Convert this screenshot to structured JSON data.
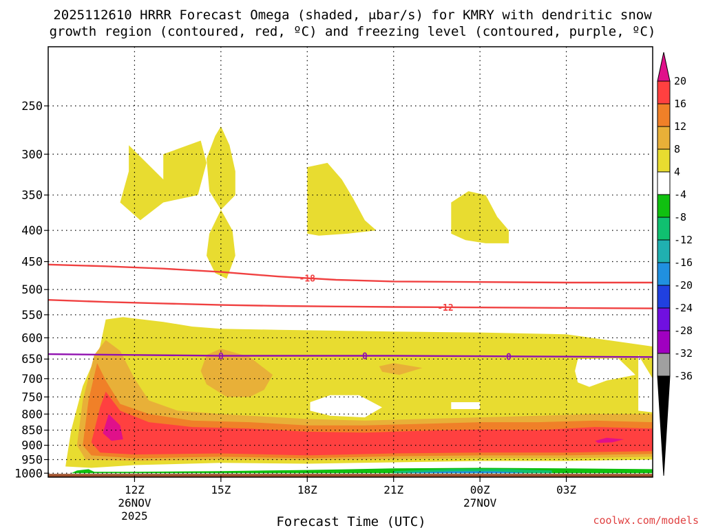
{
  "chart_data": {
    "type": "heatmap",
    "title_line1": "2025112610 HRRR Forecast Omega (shaded, μbar/s) for KMRY with dendritic snow",
    "title_line2": "growth region (contoured, red, ºC) and freezing level (contoured, purple, ºC)",
    "xlabel": "Forecast Time (UTC)",
    "watermark": "coolwx.com/models",
    "x_hours": [
      9,
      30
    ],
    "x_ticks": [
      {
        "hour": 12,
        "label": "12Z",
        "sub1": "26NOV",
        "sub2": "2025"
      },
      {
        "hour": 15,
        "label": "15Z",
        "sub1": "",
        "sub2": ""
      },
      {
        "hour": 18,
        "label": "18Z",
        "sub1": "",
        "sub2": ""
      },
      {
        "hour": 21,
        "label": "21Z",
        "sub1": "",
        "sub2": ""
      },
      {
        "hour": 24,
        "label": "00Z",
        "sub1": "27NOV",
        "sub2": ""
      },
      {
        "hour": 27,
        "label": "03Z",
        "sub1": "",
        "sub2": ""
      }
    ],
    "y_levels_hpa": [
      250,
      300,
      350,
      400,
      450,
      500,
      550,
      600,
      650,
      700,
      750,
      800,
      850,
      900,
      950,
      1000
    ],
    "y_range_hpa": [
      200,
      1015
    ],
    "colorbar": {
      "labels": [
        "20",
        "16",
        "12",
        "8",
        "4",
        "-4",
        "-8",
        "-12",
        "-16",
        "-20",
        "-24",
        "-28",
        "-32",
        "-36"
      ],
      "colors": [
        "#ff4040",
        "#f08028",
        "#e8b038",
        "#e8dc30",
        "#ffffff",
        "#10c010",
        "#10c070",
        "#20b0b0",
        "#2090e0",
        "#2040e0",
        "#7010e0",
        "#a000c0",
        "#a0a0a0"
      ],
      "top_arrow_color": "#e0108a",
      "bottom_arrow_color": "#000000"
    },
    "contours": [
      {
        "name": "dgz-minus18",
        "value": -18,
        "label": "-18",
        "color": "#f04040",
        "points": [
          [
            9,
            455
          ],
          [
            11,
            458
          ],
          [
            13,
            462
          ],
          [
            15,
            468
          ],
          [
            17,
            476
          ],
          [
            19,
            482
          ],
          [
            21,
            485
          ],
          [
            24,
            486
          ],
          [
            27,
            487
          ],
          [
            30,
            487
          ]
        ],
        "label_hour": 18
      },
      {
        "name": "dgz-minus12",
        "value": -12,
        "label": "-12",
        "color": "#f04040",
        "points": [
          [
            9,
            520
          ],
          [
            11,
            524
          ],
          [
            13,
            527
          ],
          [
            15,
            530
          ],
          [
            17,
            532
          ],
          [
            19,
            533
          ],
          [
            21,
            534
          ],
          [
            24,
            535
          ],
          [
            27,
            536
          ],
          [
            30,
            537
          ]
        ],
        "label_hour": 22.8
      },
      {
        "name": "freezing-level",
        "value": 0,
        "label": "0",
        "color": "#9010b0",
        "points": [
          [
            9,
            638
          ],
          [
            12,
            640
          ],
          [
            15,
            642
          ],
          [
            18,
            642
          ],
          [
            21,
            642
          ],
          [
            24,
            643
          ],
          [
            27,
            644
          ],
          [
            30,
            645
          ]
        ],
        "label_hours": [
          15,
          20,
          25
        ]
      }
    ],
    "omega_regions": [
      {
        "color": "#e8dc30",
        "points": [
          [
            11.8,
            290
          ],
          [
            13,
            330
          ],
          [
            13,
            300
          ],
          [
            14.3,
            285
          ],
          [
            14.5,
            310
          ],
          [
            14.2,
            350
          ],
          [
            13,
            360
          ],
          [
            12.2,
            385
          ],
          [
            11.5,
            360
          ],
          [
            11.8,
            320
          ]
        ]
      },
      {
        "color": "#e8dc30",
        "points": [
          [
            14.5,
            305
          ],
          [
            14.8,
            280
          ],
          [
            15,
            270
          ],
          [
            15.3,
            290
          ],
          [
            15.5,
            320
          ],
          [
            15.5,
            350
          ],
          [
            15,
            370
          ],
          [
            14.6,
            345
          ]
        ]
      },
      {
        "color": "#e8dc30",
        "points": [
          [
            15,
            370
          ],
          [
            15.4,
            400
          ],
          [
            15.5,
            440
          ],
          [
            15.2,
            480
          ],
          [
            14.8,
            470
          ],
          [
            14.5,
            440
          ],
          [
            14.6,
            405
          ]
        ]
      },
      {
        "color": "#e8dc30",
        "points": [
          [
            18,
            315
          ],
          [
            18.7,
            310
          ],
          [
            19.2,
            330
          ],
          [
            19.6,
            355
          ],
          [
            20,
            385
          ],
          [
            20.4,
            400
          ],
          [
            19.4,
            405
          ],
          [
            18.4,
            408
          ],
          [
            18,
            405
          ]
        ]
      },
      {
        "color": "#e8dc30",
        "points": [
          [
            23,
            360
          ],
          [
            23.6,
            345
          ],
          [
            24.2,
            350
          ],
          [
            24.6,
            380
          ],
          [
            25,
            400
          ],
          [
            25,
            420
          ],
          [
            24.2,
            420
          ],
          [
            23.5,
            415
          ],
          [
            23,
            405
          ]
        ]
      },
      {
        "color": "#e8dc30",
        "points": [
          [
            9.6,
            975
          ],
          [
            9.8,
            850
          ],
          [
            10.2,
            720
          ],
          [
            10.8,
            620
          ],
          [
            11,
            560
          ],
          [
            11.6,
            555
          ],
          [
            13,
            565
          ],
          [
            14,
            575
          ],
          [
            15,
            580
          ],
          [
            17,
            582
          ],
          [
            19,
            584
          ],
          [
            21,
            586
          ],
          [
            24,
            588
          ],
          [
            27,
            592
          ],
          [
            30,
            620
          ],
          [
            30,
            700
          ],
          [
            29.5,
            640
          ],
          [
            29.5,
            790
          ],
          [
            30,
            795
          ],
          [
            30,
            950
          ],
          [
            27,
            955
          ],
          [
            24,
            955
          ],
          [
            21,
            960
          ],
          [
            18,
            965
          ],
          [
            15,
            962
          ],
          [
            12,
            970
          ],
          [
            10.5,
            980
          ]
        ]
      },
      {
        "color": "#ffffff",
        "points": [
          [
            27.4,
            650
          ],
          [
            28.8,
            648
          ],
          [
            29.4,
            690
          ],
          [
            28.4,
            705
          ],
          [
            27.8,
            722
          ],
          [
            27.4,
            710
          ],
          [
            27.3,
            680
          ]
        ]
      },
      {
        "color": "#ffffff",
        "points": [
          [
            18.1,
            765
          ],
          [
            18.8,
            745
          ],
          [
            19.8,
            745
          ],
          [
            20.6,
            780
          ],
          [
            20,
            810
          ],
          [
            18.8,
            805
          ],
          [
            18.1,
            790
          ]
        ]
      },
      {
        "color": "#ffffff",
        "points": [
          [
            23,
            765
          ],
          [
            24,
            765
          ],
          [
            24,
            785
          ],
          [
            23,
            785
          ]
        ]
      },
      {
        "color": "#e8b038",
        "points": [
          [
            10,
            900
          ],
          [
            10.2,
            760
          ],
          [
            10.6,
            640
          ],
          [
            11,
            605
          ],
          [
            11.5,
            630
          ],
          [
            12,
            700
          ],
          [
            12.5,
            760
          ],
          [
            13.5,
            790
          ],
          [
            15,
            800
          ],
          [
            16,
            805
          ],
          [
            18,
            815
          ],
          [
            20,
            820
          ],
          [
            22,
            815
          ],
          [
            24,
            810
          ],
          [
            26,
            805
          ],
          [
            28,
            800
          ],
          [
            30,
            800
          ],
          [
            30,
            940
          ],
          [
            27,
            945
          ],
          [
            24,
            945
          ],
          [
            21,
            948
          ],
          [
            18,
            952
          ],
          [
            15,
            950
          ],
          [
            12,
            955
          ],
          [
            10.3,
            950
          ]
        ]
      },
      {
        "color": "#e8b038",
        "points": [
          [
            14.5,
            640
          ],
          [
            15,
            625
          ],
          [
            16,
            645
          ],
          [
            16.8,
            690
          ],
          [
            16.5,
            730
          ],
          [
            16,
            750
          ],
          [
            15.2,
            750
          ],
          [
            14.5,
            715
          ],
          [
            14.3,
            680
          ]
        ]
      },
      {
        "color": "#e8b038",
        "points": [
          [
            20.5,
            668
          ],
          [
            21,
            660
          ],
          [
            22,
            672
          ],
          [
            21.2,
            690
          ],
          [
            20.6,
            682
          ]
        ]
      },
      {
        "color": "#f08028",
        "points": [
          [
            10.2,
            900
          ],
          [
            10.4,
            760
          ],
          [
            10.7,
            660
          ],
          [
            11,
            705
          ],
          [
            11.5,
            770
          ],
          [
            12.5,
            800
          ],
          [
            14,
            820
          ],
          [
            16,
            825
          ],
          [
            18,
            835
          ],
          [
            20,
            835
          ],
          [
            22,
            830
          ],
          [
            24,
            825
          ],
          [
            26,
            825
          ],
          [
            28,
            820
          ],
          [
            30,
            825
          ],
          [
            30,
            930
          ],
          [
            27,
            935
          ],
          [
            24,
            935
          ],
          [
            21,
            938
          ],
          [
            18,
            945
          ],
          [
            15,
            940
          ],
          [
            12,
            945
          ],
          [
            10.5,
            935
          ]
        ]
      },
      {
        "color": "#ff4040",
        "points": [
          [
            10.5,
            890
          ],
          [
            10.8,
            780
          ],
          [
            11,
            735
          ],
          [
            11.5,
            790
          ],
          [
            12.5,
            825
          ],
          [
            14,
            840
          ],
          [
            16,
            845
          ],
          [
            18,
            855
          ],
          [
            20,
            858
          ],
          [
            22,
            852
          ],
          [
            24,
            848
          ],
          [
            26,
            850
          ],
          [
            28,
            840
          ],
          [
            30,
            845
          ],
          [
            30,
            920
          ],
          [
            27,
            925
          ],
          [
            24,
            925
          ],
          [
            21,
            928
          ],
          [
            18,
            935
          ],
          [
            15,
            928
          ],
          [
            12,
            932
          ],
          [
            10.8,
            925
          ]
        ]
      },
      {
        "color": "#e0108a",
        "points": [
          [
            10.9,
            860
          ],
          [
            11.1,
            800
          ],
          [
            11.5,
            835
          ],
          [
            11.6,
            880
          ],
          [
            11.2,
            885
          ]
        ]
      },
      {
        "color": "#e0108a",
        "points": [
          [
            28,
            885
          ],
          [
            28.4,
            875
          ],
          [
            29,
            880
          ],
          [
            28.6,
            890
          ],
          [
            28.1,
            892
          ]
        ]
      },
      {
        "color": "#10c010",
        "points": [
          [
            9.8,
            1000
          ],
          [
            10,
            990
          ],
          [
            10.4,
            985
          ],
          [
            10.6,
            995
          ],
          [
            12,
            995
          ],
          [
            15,
            992
          ],
          [
            18,
            988
          ],
          [
            21,
            982
          ],
          [
            24,
            980
          ],
          [
            27,
            982
          ],
          [
            30,
            985
          ],
          [
            30,
            1000
          ]
        ]
      },
      {
        "color": "#10c070",
        "points": [
          [
            21,
            992
          ],
          [
            23,
            985
          ],
          [
            25,
            985
          ],
          [
            26.5,
            990
          ],
          [
            26.5,
            1000
          ],
          [
            21,
            1000
          ]
        ]
      },
      {
        "color": "#2090e0",
        "points": [
          [
            21.5,
            998
          ],
          [
            23,
            993
          ],
          [
            24.5,
            993
          ],
          [
            25.5,
            998
          ],
          [
            25.5,
            1000
          ],
          [
            21.5,
            1000
          ]
        ]
      }
    ],
    "ground_color": "#a0522d",
    "ground_top_hpa": 1000
  }
}
